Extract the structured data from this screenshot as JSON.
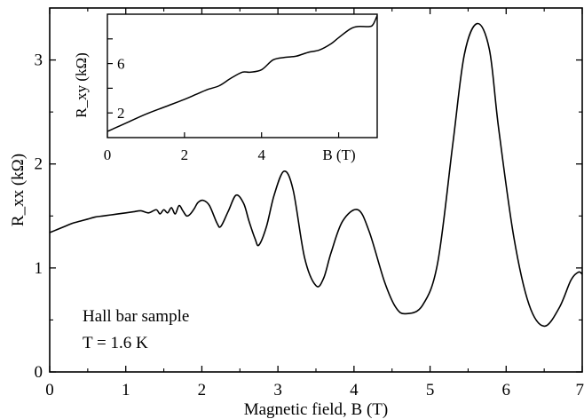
{
  "chart_data": [
    {
      "type": "line",
      "panel": "main",
      "xlabel": "Magnetic field, B (T)",
      "ylabel": "R_xx (kΩ)",
      "xlim": [
        0,
        7
      ],
      "ylim": [
        0,
        3.5
      ],
      "x_ticks": [
        "0",
        "1",
        "2",
        "3",
        "4",
        "5",
        "6",
        "7"
      ],
      "y_ticks": [
        "0",
        "1",
        "2",
        "3"
      ],
      "grid": false,
      "annotations": [
        "Hall bar sample",
        "T = 1.6 K"
      ],
      "series": [
        {
          "x": [
            0,
            0.1,
            0.2,
            0.3,
            0.4,
            0.5,
            0.6,
            0.7,
            0.8,
            0.9,
            1.0,
            1.1,
            1.2,
            1.3,
            1.4,
            1.45,
            1.5,
            1.55,
            1.6,
            1.65,
            1.7,
            1.75,
            1.8,
            1.85,
            1.9,
            1.95,
            2.02,
            2.1,
            2.2,
            2.25,
            2.35,
            2.45,
            2.55,
            2.62,
            2.7,
            2.75,
            2.85,
            2.95,
            3.08,
            3.2,
            3.35,
            3.5,
            3.6,
            3.7,
            3.85,
            4.05,
            4.2,
            4.4,
            4.55,
            4.68,
            4.9,
            5.1,
            5.3,
            5.45,
            5.62,
            5.78,
            5.9,
            6.1,
            6.3,
            6.5,
            6.7,
            6.85,
            6.95,
            7.0
          ],
          "y": [
            1.34,
            1.37,
            1.4,
            1.43,
            1.45,
            1.47,
            1.49,
            1.5,
            1.51,
            1.52,
            1.53,
            1.54,
            1.55,
            1.53,
            1.56,
            1.52,
            1.56,
            1.53,
            1.58,
            1.52,
            1.6,
            1.55,
            1.5,
            1.52,
            1.57,
            1.63,
            1.65,
            1.6,
            1.43,
            1.4,
            1.55,
            1.7,
            1.62,
            1.45,
            1.28,
            1.22,
            1.4,
            1.7,
            1.93,
            1.75,
            1.1,
            0.83,
            0.9,
            1.15,
            1.45,
            1.56,
            1.35,
            0.87,
            0.62,
            0.56,
            0.64,
            1.05,
            2.2,
            3.05,
            3.35,
            3.1,
            2.35,
            1.3,
            0.65,
            0.44,
            0.62,
            0.88,
            0.96,
            0.94
          ]
        }
      ]
    },
    {
      "type": "line",
      "panel": "inset",
      "xlabel": "B (T)",
      "ylabel": "R_xy (kΩ)",
      "xlim": [
        0,
        7
      ],
      "ylim": [
        0,
        10
      ],
      "x_ticks": [
        "0",
        "2",
        "4"
      ],
      "y_ticks": [
        "2",
        "6"
      ],
      "grid": false,
      "series": [
        {
          "x": [
            0,
            0.5,
            1.0,
            1.5,
            2.0,
            2.3,
            2.6,
            2.9,
            3.2,
            3.5,
            3.7,
            4.0,
            4.3,
            4.6,
            4.9,
            5.2,
            5.5,
            5.8,
            6.0,
            6.3,
            6.5,
            6.8,
            6.9,
            7.0
          ],
          "y": [
            0.5,
            1.2,
            1.9,
            2.5,
            3.1,
            3.5,
            3.9,
            4.2,
            4.8,
            5.3,
            5.3,
            5.5,
            6.3,
            6.5,
            6.6,
            6.9,
            7.1,
            7.6,
            8.1,
            8.8,
            9.0,
            9.0,
            9.2,
            9.9
          ]
        }
      ]
    }
  ]
}
